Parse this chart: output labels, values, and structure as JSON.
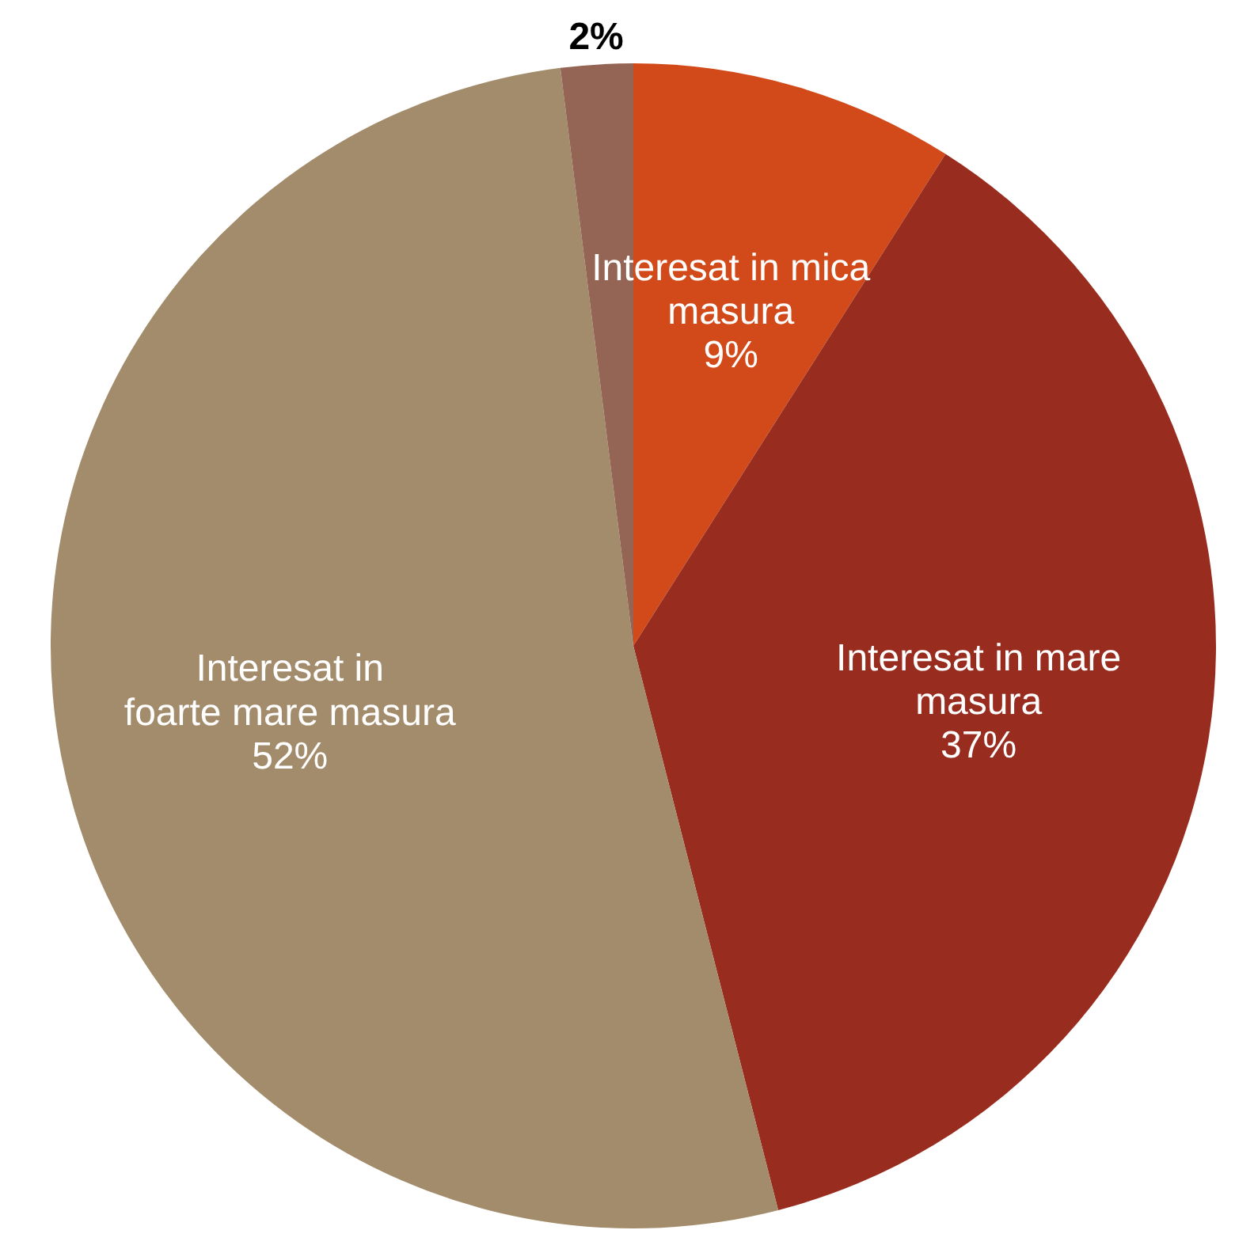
{
  "chart_data": {
    "type": "pie",
    "categories": [
      "Interesat in mica masura",
      "Interesat in mare masura",
      "Interesat in foarte mare masura",
      null
    ],
    "values": [
      9,
      37,
      52,
      2
    ],
    "value_labels": [
      "9%",
      "37%",
      "52%",
      "2%"
    ],
    "colors": [
      "#d24a1a",
      "#982d1f",
      "#a38c6b",
      "#946454"
    ]
  }
}
